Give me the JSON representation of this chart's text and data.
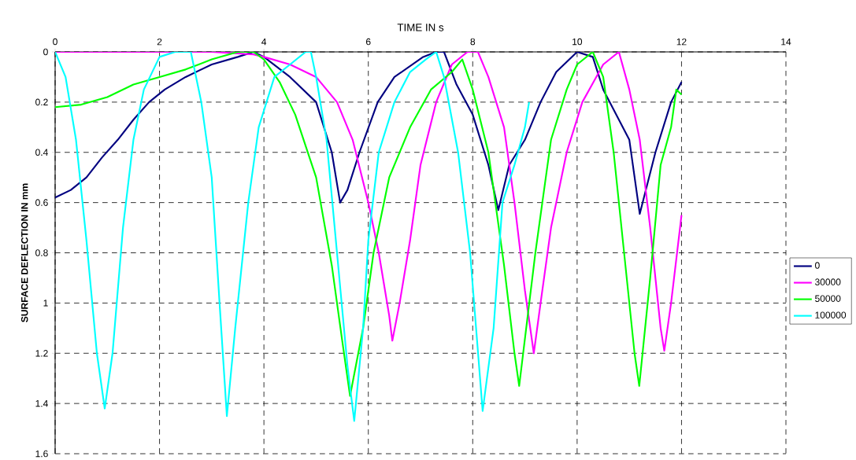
{
  "chart_data": {
    "type": "line",
    "xlabel": "TIME IN s",
    "ylabel": "SURFACE DEFLECTION IN mm",
    "xlim": [
      0,
      14
    ],
    "ylim": [
      1.6,
      0
    ],
    "xticks": [
      0,
      2,
      4,
      6,
      8,
      10,
      12,
      14
    ],
    "yticks": [
      0,
      0.2,
      0.4,
      0.6,
      0.8,
      1,
      1.2,
      1.4,
      1.6
    ],
    "grid": true,
    "legend": "right",
    "marker": "none",
    "line_style": "solid",
    "series": [
      {
        "name": "0",
        "color": "#000080",
        "x": [
          0,
          0.3,
          0.6,
          0.9,
          1.2,
          1.5,
          1.8,
          2.1,
          2.5,
          3.0,
          3.5,
          3.8,
          4.0,
          4.5,
          5.0,
          5.3,
          5.46,
          5.6,
          5.83,
          6.18,
          6.5,
          7.05,
          7.3,
          7.45,
          7.69,
          8.0,
          8.3,
          8.49,
          8.7,
          9.0,
          9.3,
          9.6,
          10.0,
          10.3,
          10.5,
          11.0,
          11.2,
          11.5,
          11.8,
          12.0
        ],
        "values": [
          0.58,
          0.55,
          0.5,
          0.42,
          0.35,
          0.27,
          0.2,
          0.15,
          0.1,
          0.05,
          0.02,
          0.0,
          0.02,
          0.1,
          0.2,
          0.4,
          0.6,
          0.55,
          0.4,
          0.2,
          0.1,
          0.02,
          0.0,
          0.0,
          0.13,
          0.25,
          0.45,
          0.63,
          0.45,
          0.35,
          0.2,
          0.08,
          0.0,
          0.02,
          0.15,
          0.35,
          0.645,
          0.4,
          0.2,
          0.12
        ]
      },
      {
        "name": "30000",
        "color": "#ff00ff",
        "x": [
          0,
          1.0,
          2.0,
          3.0,
          3.8,
          4.0,
          4.5,
          5.0,
          5.4,
          5.7,
          6.0,
          6.2,
          6.4,
          6.46,
          6.6,
          6.8,
          7.0,
          7.3,
          7.6,
          7.9,
          8.1,
          8.3,
          8.6,
          8.8,
          9.0,
          9.17,
          9.3,
          9.5,
          9.8,
          10.1,
          10.5,
          10.8,
          11.0,
          11.2,
          11.4,
          11.6,
          11.67,
          11.8,
          12.0
        ],
        "values": [
          0.0,
          0.0,
          0.0,
          0.0,
          0.01,
          0.02,
          0.05,
          0.1,
          0.2,
          0.35,
          0.6,
          0.8,
          1.05,
          1.15,
          1.0,
          0.75,
          0.45,
          0.2,
          0.05,
          0.0,
          0.0,
          0.1,
          0.3,
          0.6,
          0.95,
          1.2,
          1.0,
          0.7,
          0.4,
          0.2,
          0.05,
          0.0,
          0.15,
          0.35,
          0.7,
          1.1,
          1.19,
          1.0,
          0.65
        ]
      },
      {
        "name": "50000",
        "color": "#00ff00",
        "x": [
          0,
          0.5,
          1.0,
          1.5,
          2.0,
          2.5,
          3.0,
          3.5,
          3.8,
          4.0,
          4.3,
          4.6,
          5.0,
          5.3,
          5.5,
          5.65,
          5.9,
          6.1,
          6.4,
          6.8,
          7.2,
          7.6,
          7.8,
          8.0,
          8.3,
          8.6,
          8.8,
          8.89,
          9.2,
          9.5,
          9.8,
          10.0,
          10.3,
          10.5,
          10.7,
          10.9,
          11.1,
          11.19,
          11.4,
          11.6,
          11.8,
          11.9,
          12.0
        ],
        "values": [
          0.22,
          0.21,
          0.18,
          0.13,
          0.1,
          0.07,
          0.03,
          0.0,
          0.0,
          0.03,
          0.12,
          0.25,
          0.5,
          0.85,
          1.15,
          1.37,
          1.1,
          0.8,
          0.5,
          0.3,
          0.15,
          0.08,
          0.03,
          0.15,
          0.4,
          0.85,
          1.2,
          1.33,
          0.8,
          0.35,
          0.15,
          0.05,
          0.0,
          0.1,
          0.4,
          0.8,
          1.2,
          1.33,
          0.9,
          0.45,
          0.3,
          0.15,
          0.17
        ]
      },
      {
        "name": "100000",
        "color": "#00ffff",
        "x": [
          0,
          0.2,
          0.4,
          0.6,
          0.8,
          0.95,
          1.1,
          1.3,
          1.5,
          1.7,
          2.0,
          2.3,
          2.6,
          2.8,
          3.0,
          3.15,
          3.29,
          3.45,
          3.7,
          3.9,
          4.2,
          4.5,
          4.8,
          4.9,
          5.0,
          5.2,
          5.4,
          5.6,
          5.73,
          5.9,
          6.0,
          6.2,
          6.5,
          6.8,
          7.1,
          7.3,
          7.45,
          7.72,
          7.95,
          8.19,
          8.4,
          8.57,
          8.8,
          9.0,
          9.08
        ],
        "values": [
          0.0,
          0.1,
          0.35,
          0.75,
          1.2,
          1.42,
          1.2,
          0.7,
          0.35,
          0.15,
          0.02,
          0.0,
          0.0,
          0.2,
          0.5,
          1.0,
          1.45,
          1.1,
          0.6,
          0.3,
          0.1,
          0.05,
          0.0,
          0.0,
          0.1,
          0.35,
          0.8,
          1.25,
          1.47,
          1.1,
          0.75,
          0.4,
          0.2,
          0.08,
          0.03,
          0.0,
          0.1,
          0.4,
          0.8,
          1.43,
          1.1,
          0.6,
          0.45,
          0.3,
          0.2
        ]
      }
    ]
  }
}
